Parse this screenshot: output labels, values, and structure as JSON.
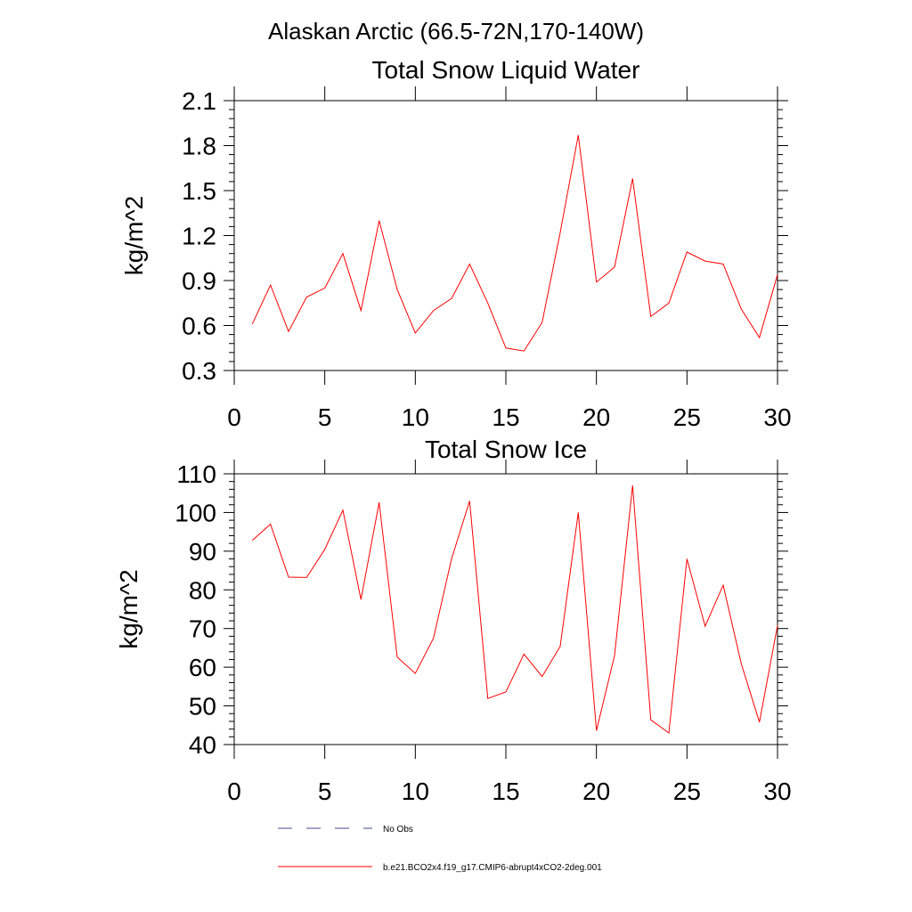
{
  "suptitle": "Alaskan Arctic (66.5-72N,170-140W)",
  "colors": {
    "model": "#ff0000",
    "obs": "#4a4a8a",
    "axis": "#000000"
  },
  "legend": {
    "obs_label": "No Obs",
    "model_label": "b.e21.BCO2x4.f19_g17.CMIP6-abrupt4xCO2-2deg.001"
  },
  "chart_data": [
    {
      "type": "line",
      "title": "Total Snow Liquid Water",
      "xlabel": "",
      "ylabel": "kg/m^2",
      "xlim": [
        0,
        30
      ],
      "ylim": [
        0.3,
        2.1
      ],
      "xticks": [
        0,
        5,
        10,
        15,
        20,
        25,
        30
      ],
      "yticks": [
        0.3,
        0.6,
        0.9,
        1.2,
        1.5,
        1.8,
        2.1
      ],
      "ytick_labels": [
        "0.3",
        "0.6",
        "0.9",
        "1.2",
        "1.5",
        "1.8",
        "2.1"
      ],
      "x": [
        1,
        2,
        3,
        4,
        5,
        6,
        7,
        8,
        9,
        10,
        11,
        12,
        13,
        14,
        15,
        16,
        17,
        18,
        19,
        20,
        21,
        22,
        23,
        24,
        25,
        26,
        27,
        28,
        29,
        30
      ],
      "series": [
        {
          "name": "b.e21.BCO2x4.f19_g17.CMIP6-abrupt4xCO2-2deg.001",
          "values": [
            0.61,
            0.87,
            0.56,
            0.79,
            0.85,
            1.08,
            0.7,
            1.3,
            0.84,
            0.55,
            0.7,
            0.78,
            1.01,
            0.75,
            0.45,
            0.43,
            0.62,
            1.22,
            1.87,
            0.89,
            0.99,
            1.58,
            0.66,
            0.75,
            1.09,
            1.03,
            1.01,
            0.71,
            0.52,
            0.94
          ]
        }
      ]
    },
    {
      "type": "line",
      "title": "Total Snow Ice",
      "xlabel": "",
      "ylabel": "kg/m^2",
      "xlim": [
        0,
        30
      ],
      "ylim": [
        40,
        110
      ],
      "xticks": [
        0,
        5,
        10,
        15,
        20,
        25,
        30
      ],
      "yticks": [
        40,
        50,
        60,
        70,
        80,
        90,
        100,
        110
      ],
      "ytick_labels": [
        "40",
        "50",
        "60",
        "70",
        "80",
        "90",
        "100",
        "110"
      ],
      "x": [
        1,
        2,
        3,
        4,
        5,
        6,
        7,
        8,
        9,
        10,
        11,
        12,
        13,
        14,
        15,
        16,
        17,
        18,
        19,
        20,
        21,
        22,
        23,
        24,
        25,
        26,
        27,
        28,
        29,
        30
      ],
      "series": [
        {
          "name": "b.e21.BCO2x4.f19_g17.CMIP6-abrupt4xCO2-2deg.001",
          "values": [
            92.8,
            97.0,
            83.3,
            83.2,
            90.5,
            100.6,
            77.5,
            102.6,
            62.6,
            58.4,
            67.5,
            88.0,
            103.0,
            51.9,
            53.6,
            63.4,
            57.6,
            65.4,
            100.0,
            43.6,
            63.0,
            107.0,
            46.4,
            43.0,
            88.0,
            70.6,
            81.2,
            60.9,
            45.8,
            70.8
          ]
        }
      ]
    }
  ]
}
